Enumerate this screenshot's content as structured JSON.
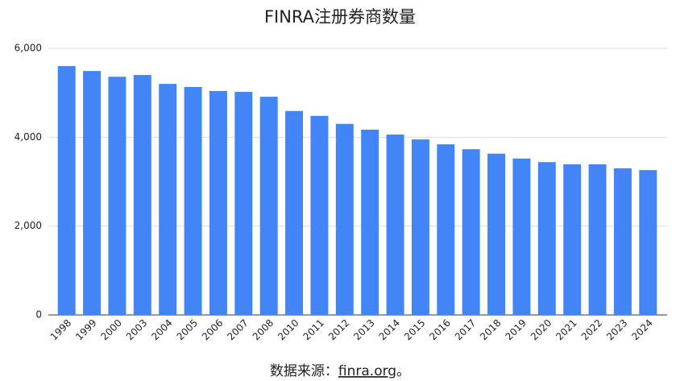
{
  "chart_data": {
    "type": "bar",
    "title": "FINRA注册券商数量",
    "categories": [
      "1998",
      "1999",
      "2000",
      "2003",
      "2004",
      "2005",
      "2006",
      "2007",
      "2008",
      "2010",
      "2011",
      "2012",
      "2013",
      "2014",
      "2015",
      "2016",
      "2017",
      "2018",
      "2019",
      "2020",
      "2021",
      "2022",
      "2023",
      "2024"
    ],
    "values": [
      5600,
      5490,
      5360,
      5400,
      5200,
      5130,
      5040,
      5020,
      4910,
      4590,
      4480,
      4300,
      4170,
      4060,
      3950,
      3840,
      3730,
      3630,
      3520,
      3440,
      3390,
      3390,
      3300,
      3260
    ],
    "color": "#4285f4",
    "ylim": [
      0,
      6000
    ],
    "yticks": [
      0,
      {
        "value": 2000,
        "label": "2,000"
      },
      {
        "value": 4000,
        "label": "4,000"
      },
      {
        "value": 6000,
        "label": "6,000"
      }
    ],
    "grid": true,
    "source": {
      "label": "数据来源：",
      "link": "finra.org",
      "end": "。"
    }
  }
}
